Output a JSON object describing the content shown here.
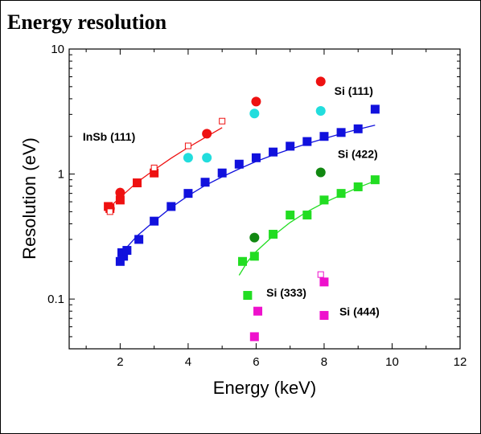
{
  "slide": {
    "title": "Energy resolution"
  },
  "chart_data": {
    "type": "scatter",
    "title": "",
    "xlabel": "Energy (keV)",
    "ylabel": "Resolution (eV)",
    "xlim": [
      0.5,
      12
    ],
    "ylim": [
      0.04,
      10
    ],
    "yscale": "log",
    "x_ticks": [
      2,
      4,
      6,
      8,
      10,
      12
    ],
    "y_ticks": [
      {
        "value": 0.1,
        "label": "0.1"
      },
      {
        "value": 1,
        "label": "1"
      },
      {
        "value": 10,
        "label": "10"
      }
    ],
    "grid": false,
    "colors": {
      "red": "#ee1111",
      "blue": "#1111dd",
      "green": "#22dd22",
      "cyan": "#22dddd",
      "dark_green": "#118811",
      "magenta": "#ee11cc"
    },
    "series": [
      {
        "name": "InSb (111)",
        "color": "red",
        "marker": "square",
        "x": [
          1.65,
          1.7,
          2.0,
          2.5,
          3.0
        ],
        "y": [
          0.55,
          0.53,
          0.62,
          0.85,
          1.02
        ]
      },
      {
        "name": "InSb (111)",
        "color": "red",
        "marker": "circle",
        "x": [
          1.7,
          2.0,
          4.55,
          6.0,
          7.9
        ],
        "y": [
          0.53,
          0.71,
          2.1,
          3.8,
          5.5
        ]
      },
      {
        "name": "InSb (111)",
        "color": "red",
        "marker": "open-square",
        "x": [
          1.7,
          3.0,
          4.0,
          5.0
        ],
        "y": [
          0.5,
          1.12,
          1.68,
          2.65
        ]
      },
      {
        "name": "InSb (111)",
        "color": "red",
        "marker": "fit-line",
        "x": [
          1.65,
          2.0,
          2.5,
          3.0,
          3.5,
          4.0,
          4.5,
          5.0
        ],
        "y": [
          0.53,
          0.65,
          0.86,
          1.08,
          1.34,
          1.63,
          1.96,
          2.35
        ]
      },
      {
        "name": "",
        "color": "cyan",
        "marker": "circle",
        "x": [
          4.0,
          4.55,
          5.95,
          7.9
        ],
        "y": [
          1.35,
          1.35,
          3.05,
          3.2
        ]
      },
      {
        "name": "Si (111)",
        "color": "blue",
        "marker": "square",
        "x": [
          2.0,
          2.05,
          2.1,
          2.2,
          2.55,
          3.0,
          3.5,
          4.0,
          4.5,
          5.0,
          5.5,
          6.0,
          6.5,
          7.0,
          7.5,
          8.0,
          8.5,
          9.0,
          9.5
        ],
        "y": [
          0.2,
          0.235,
          0.22,
          0.245,
          0.3,
          0.42,
          0.55,
          0.7,
          0.86,
          1.02,
          1.2,
          1.35,
          1.5,
          1.67,
          1.82,
          2.0,
          2.15,
          2.3,
          3.3
        ]
      },
      {
        "name": "Si (111)",
        "color": "blue",
        "marker": "fit-line",
        "x": [
          2.0,
          2.2,
          2.5,
          3.0,
          3.5,
          4.0,
          4.5,
          5.0,
          5.5,
          6.0,
          6.5,
          7.0,
          7.5,
          8.0,
          8.5,
          9.0,
          9.5
        ],
        "y": [
          0.22,
          0.26,
          0.32,
          0.42,
          0.54,
          0.67,
          0.81,
          0.95,
          1.1,
          1.26,
          1.42,
          1.58,
          1.75,
          1.92,
          2.1,
          2.28,
          2.46
        ]
      },
      {
        "name": "Si (422)",
        "color": "green",
        "marker": "square",
        "x": [
          5.6,
          5.95,
          6.5,
          7.0,
          7.5,
          8.0,
          8.5,
          9.0,
          9.5
        ],
        "y": [
          0.2,
          0.22,
          0.33,
          0.47,
          0.47,
          0.62,
          0.7,
          0.79,
          0.9
        ]
      },
      {
        "name": "Si (422)",
        "color": "green",
        "marker": "fit-line",
        "x": [
          5.5,
          5.75,
          6.0,
          6.5,
          7.0,
          7.5,
          8.0,
          8.5,
          9.0,
          9.5
        ],
        "y": [
          0.155,
          0.2,
          0.24,
          0.32,
          0.41,
          0.5,
          0.59,
          0.68,
          0.78,
          0.88
        ]
      },
      {
        "name": "",
        "color": "dark_green",
        "marker": "circle",
        "x": [
          5.95,
          7.9
        ],
        "y": [
          0.31,
          1.03
        ]
      },
      {
        "name": "Si (333)",
        "color": "green",
        "marker": "square",
        "x": [
          5.75
        ],
        "y": [
          0.107
        ]
      },
      {
        "name": "Si (444)",
        "color": "magenta",
        "marker": "square",
        "x": [
          5.95,
          6.05,
          8.0,
          8.0
        ],
        "y": [
          0.05,
          0.08,
          0.137,
          0.074
        ]
      },
      {
        "name": "",
        "color": "magenta",
        "marker": "open-square",
        "x": [
          7.9
        ],
        "y": [
          0.157
        ]
      }
    ],
    "annotations": [
      {
        "text": "InSb (111)",
        "x": 0.9,
        "y": 1.85
      },
      {
        "text": "Si (111)",
        "x": 8.3,
        "y": 4.3
      },
      {
        "text": "Si (422)",
        "x": 8.4,
        "y": 1.35
      },
      {
        "text": "Si (333)",
        "x": 6.3,
        "y": 0.105
      },
      {
        "text": "Si (444)",
        "x": 8.45,
        "y": 0.074
      }
    ]
  }
}
